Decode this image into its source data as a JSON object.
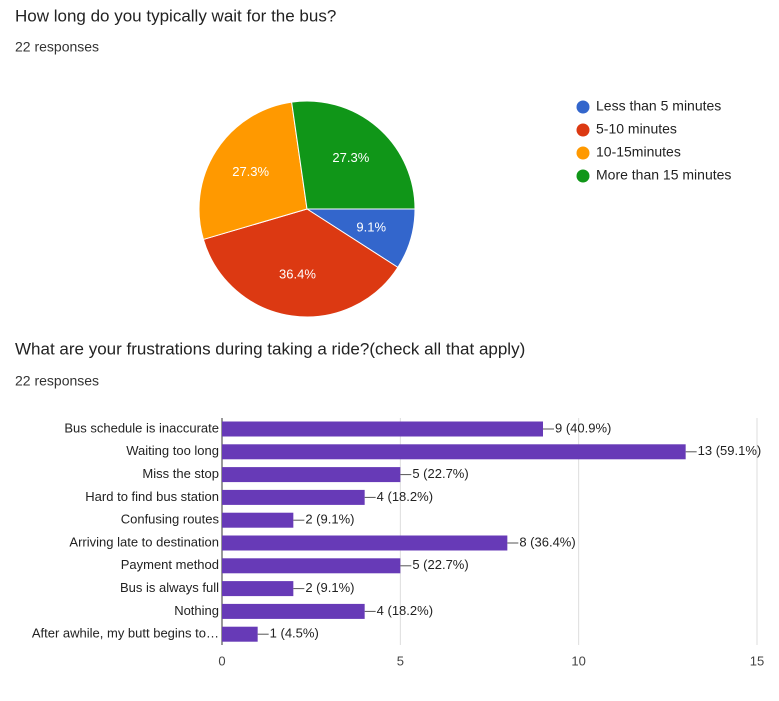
{
  "chart_data": [
    {
      "type": "pie",
      "title": "How long do you typically wait for the bus?",
      "subtitle": "22 responses",
      "categories": [
        "Less than 5 minutes",
        "5-10 minutes",
        "10-15minutes",
        "More than 15 minutes"
      ],
      "values": [
        9.1,
        36.4,
        27.3,
        27.3
      ],
      "value_labels": [
        "9.1%",
        "36.4%",
        "27.3%",
        "27.3%"
      ],
      "colors": [
        "#3366cc",
        "#dc3912",
        "#ff9900",
        "#109618"
      ],
      "legend": "right"
    },
    {
      "type": "hbar",
      "title": "What are your frustrations during taking a ride?(check all that apply)",
      "subtitle": "22 responses",
      "categories": [
        "Bus schedule is inaccurate",
        "Waiting too long",
        "Miss the stop",
        "Hard to find bus station",
        "Confusing routes",
        "Arriving late to destination",
        "Payment method",
        "Bus is always full",
        "Nothing",
        "After awhile, my butt begins to…"
      ],
      "values": [
        9,
        13,
        5,
        4,
        2,
        8,
        5,
        2,
        4,
        1
      ],
      "value_labels": [
        "9 (40.9%)",
        "13 (59.1%)",
        "5 (22.7%)",
        "4 (18.2%)",
        "2 (9.1%)",
        "8 (36.4%)",
        "5 (22.7%)",
        "2 (9.1%)",
        "4 (18.2%)",
        "1 (4.5%)"
      ],
      "color": "#673ab7",
      "xlim": [
        0,
        15
      ],
      "xticks": [
        0,
        5,
        10,
        15
      ],
      "grid": true
    }
  ]
}
